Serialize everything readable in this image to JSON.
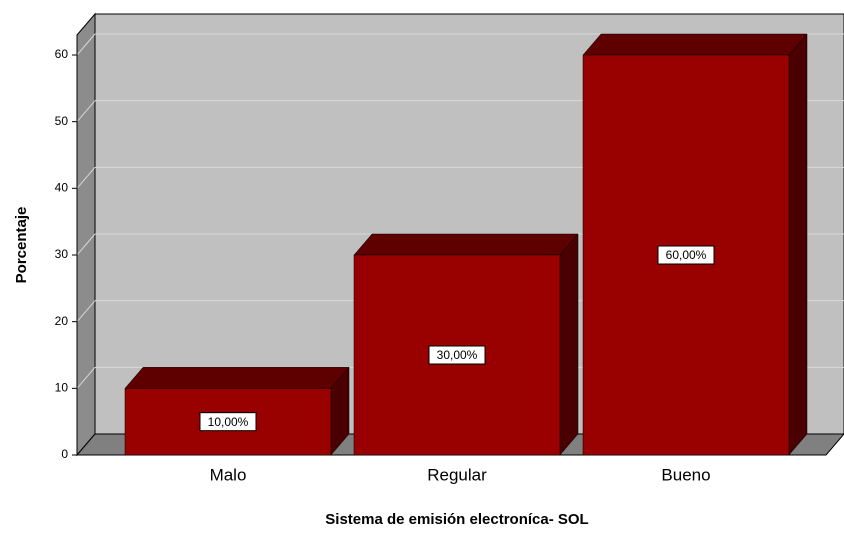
{
  "chart_data": {
    "type": "bar3d",
    "categories": [
      "Malo",
      "Regular",
      "Bueno"
    ],
    "values": [
      10,
      30,
      60
    ],
    "value_labels": [
      "10,00%",
      "30,00%",
      "60,00%"
    ],
    "color": "#990000",
    "ylim": [
      0,
      63
    ],
    "yticks": [
      0,
      10,
      20,
      30,
      40,
      50,
      60
    ],
    "grid": true,
    "y_label": "Porcentaje",
    "x_label": "Sistema de emisión electroníca- SOL"
  }
}
